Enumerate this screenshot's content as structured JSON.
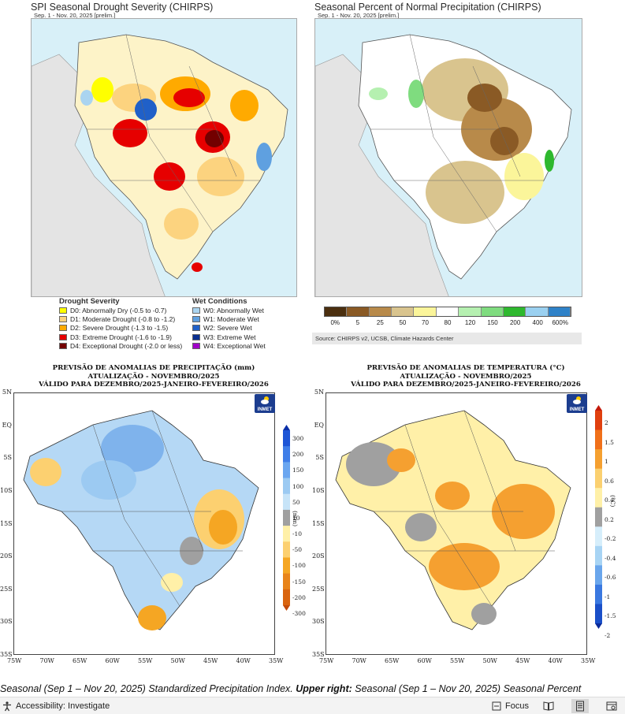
{
  "top_left": {
    "title": "SPI Seasonal Drought Severity (CHIRPS)",
    "subtitle": "Sep. 1 - Nov. 20, 2025 [prelim.]",
    "legend_drought_title": "Drought Severity",
    "legend_wet_title": "Wet Conditions",
    "drought_items": [
      {
        "label": "D0: Abnormally Dry (-0.5 to -0.7)",
        "color": "#ffff00"
      },
      {
        "label": "D1: Moderate Drought (-0.8 to -1.2)",
        "color": "#fcd37f"
      },
      {
        "label": "D2: Severe Drought (-1.3 to -1.5)",
        "color": "#ffaa00"
      },
      {
        "label": "D3: Extreme Drought (-1.6 to -1.9)",
        "color": "#e60000"
      },
      {
        "label": "D4: Exceptional Drought (-2.0 or less)",
        "color": "#730000"
      }
    ],
    "wet_items": [
      {
        "label": "W0: Abnormally Wet",
        "color": "#aad4f0"
      },
      {
        "label": "W1: Moderate Wet",
        "color": "#5fa0e0"
      },
      {
        "label": "W2: Severe Wet",
        "color": "#2060c8"
      },
      {
        "label": "W3: Extreme Wet",
        "color": "#0a2f8f"
      },
      {
        "label": "W4: Exceptional Wet",
        "color": "#a000c8"
      }
    ]
  },
  "top_right": {
    "title": "Seasonal Percent of Normal Precipitation (CHIRPS)",
    "subtitle": "Sep. 1 - Nov. 20, 2025 [prelim.]",
    "colorbar_colors": [
      "#4b2f0f",
      "#8a5a25",
      "#b88a4a",
      "#d9c48e",
      "#fbf59a",
      "#ffffff",
      "#b5f0b0",
      "#7fdc7f",
      "#2eb82e",
      "#9ad0f0",
      "#2f82c8"
    ],
    "colorbar_labels": [
      "0%",
      "5",
      "25",
      "50",
      "70",
      "80",
      "120",
      "150",
      "200",
      "400",
      "600%"
    ],
    "source": "Source: CHIRPS v2, UCSB, Climate Hazards Center"
  },
  "bottom_left": {
    "title_line1": "PREVISÃO DE ANOMALIAS DE PRECIPITAÇÃO (mm)",
    "title_line2": "ATUALIZAÇÃO - NOVEMBRO/2025",
    "title_line3": "VÁLIDO PARA DEZEMBRO/2025-JANEIRO-FEVEREIRO/2026",
    "logo": "INMET",
    "unit": "(mm)",
    "colorbar_labels": [
      "300",
      "200",
      "150",
      "100",
      "50",
      "10",
      "-10",
      "-50",
      "-100",
      "-150",
      "-200",
      "-300"
    ],
    "colorbar_colors": [
      "#0a2fa8",
      "#1d55d6",
      "#3f7ee8",
      "#6aa6f0",
      "#9ccaf2",
      "#c7e4f8",
      "#a0a0a0",
      "#fff0a8",
      "#fcd070",
      "#f5a623",
      "#e8841a",
      "#d9640f",
      "#c24a0a"
    ]
  },
  "bottom_right": {
    "title_line1": "PREVISÃO DE ANOMALIAS DE TEMPERATURA (°C)",
    "title_line2": "ATUALIZAÇÃO - NOVEMBRO/2025",
    "title_line3": "VÁLIDO PARA DEZEMBRO/2025-JANEIRO-FEVEREIRO/2026",
    "logo": "INMET",
    "unit": "(°C)",
    "colorbar_labels": [
      "2",
      "1.5",
      "1",
      "0.6",
      "0.4",
      "0.2",
      "-0.2",
      "-0.4",
      "-0.6",
      "-1",
      "-1.5",
      "-2"
    ],
    "colorbar_colors": [
      "#c41a0a",
      "#e0400f",
      "#f0701a",
      "#f5a030",
      "#fbd070",
      "#fff0a8",
      "#a0a0a0",
      "#d6eefb",
      "#a8d4f4",
      "#6aa6ec",
      "#3a78e0",
      "#1a4fc8",
      "#0a2a9a"
    ]
  },
  "axes": {
    "lat_labels": [
      "5N",
      "EQ",
      "5S",
      "10S",
      "15S",
      "20S",
      "25S",
      "30S",
      "35S"
    ],
    "lon_labels": [
      "75W",
      "70W",
      "65W",
      "60W",
      "55W",
      "50W",
      "45W",
      "40W",
      "35W"
    ]
  },
  "caption": {
    "part1": "Seasonal (Sep 1 – Nov 20, 2025) Standardized Precipitation Index. ",
    "bold": "Upper right:",
    "part2": " Seasonal (Sep 1 – Nov 20, 2025) Seasonal Percent"
  },
  "statusbar": {
    "accessibility": "Accessibility: Investigate",
    "focus": "Focus"
  }
}
